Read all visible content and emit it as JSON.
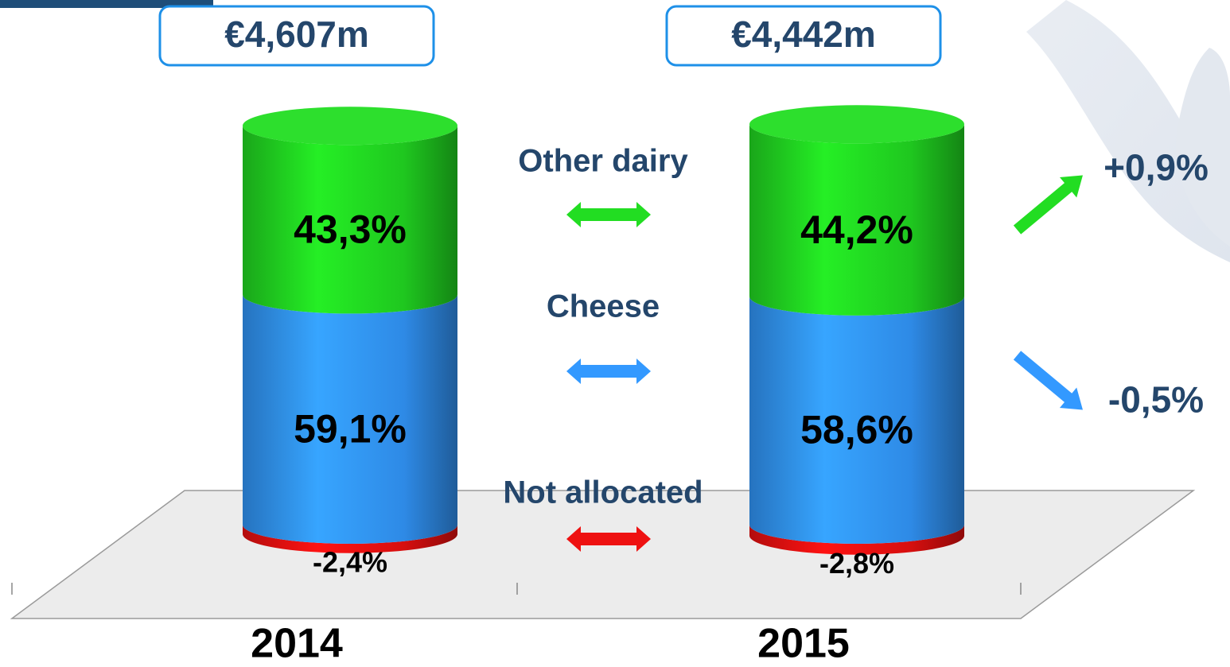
{
  "chart_data": {
    "type": "bar",
    "stacked": true,
    "categories": [
      "2014",
      "2015"
    ],
    "series": [
      {
        "name": "Not allocated",
        "color": "#ee1111",
        "values": [
          -2.4,
          -2.8
        ],
        "value_labels": [
          "-2,4%",
          "-2,8%"
        ]
      },
      {
        "name": "Cheese",
        "color": "#3399ff",
        "values": [
          59.1,
          58.6
        ],
        "value_labels": [
          "59,1%",
          "58,6%"
        ],
        "change": -0.5,
        "change_label": "-0,5%"
      },
      {
        "name": "Other dairy",
        "color": "#22dd22",
        "values": [
          43.3,
          44.2
        ],
        "value_labels": [
          "43,3%",
          "44,2%"
        ],
        "change": 0.9,
        "change_label": "+0,9%"
      }
    ],
    "totals": {
      "values": [
        4607,
        4442
      ],
      "value_labels": [
        "€4,607m",
        "€4,442m"
      ]
    }
  }
}
